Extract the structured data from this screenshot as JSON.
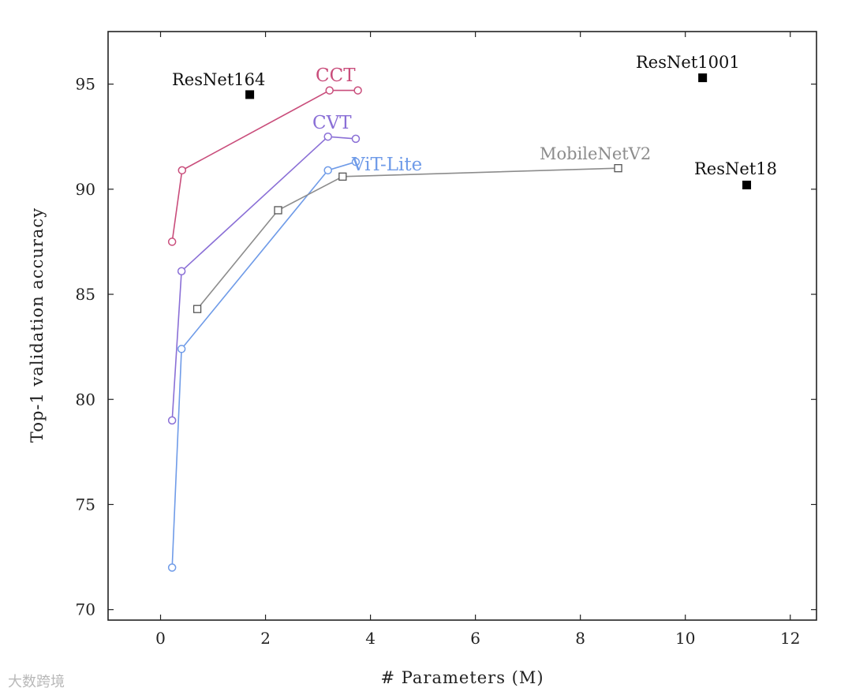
{
  "chart_data": {
    "type": "line",
    "title": "",
    "xlabel": "# Parameters (M)",
    "ylabel": "Top-1 validation accuracy",
    "xlim": [
      -1,
      12.5
    ],
    "ylim": [
      69.5,
      97.5
    ],
    "xticks": [
      0,
      2,
      4,
      6,
      8,
      10,
      12
    ],
    "yticks": [
      70,
      75,
      80,
      85,
      90,
      95
    ],
    "grid": false,
    "legend": "none (series labelled directly on the plot)",
    "series": [
      {
        "name": "CCT",
        "color": "#c94d7b",
        "marker": "circle",
        "points": [
          [
            0.22,
            87.5
          ],
          [
            0.41,
            90.9
          ],
          [
            3.22,
            94.7
          ],
          [
            3.76,
            94.7
          ]
        ]
      },
      {
        "name": "CVT",
        "color": "#8a6fd6",
        "marker": "circle",
        "points": [
          [
            0.22,
            79.0
          ],
          [
            0.4,
            86.1
          ],
          [
            3.19,
            92.5
          ],
          [
            3.72,
            92.4
          ]
        ]
      },
      {
        "name": "ViT-Lite",
        "color": "#6f9be8",
        "marker": "circle",
        "points": [
          [
            0.22,
            72.0
          ],
          [
            0.4,
            82.4
          ],
          [
            3.19,
            90.9
          ],
          [
            3.72,
            91.3
          ]
        ]
      },
      {
        "name": "MobileNetV2",
        "color": "#8c8c8c",
        "marker": "square",
        "points": [
          [
            0.7,
            84.3
          ],
          [
            2.24,
            89.0
          ],
          [
            3.47,
            90.6
          ],
          [
            8.72,
            91.0
          ]
        ]
      }
    ],
    "standalone_points": [
      {
        "name": "ResNet164",
        "x": 1.7,
        "y": 94.5
      },
      {
        "name": "ResNet1001",
        "x": 10.33,
        "y": 95.3
      },
      {
        "name": "ResNet18",
        "x": 11.17,
        "y": 90.2
      }
    ]
  },
  "watermark": "大数跨境"
}
